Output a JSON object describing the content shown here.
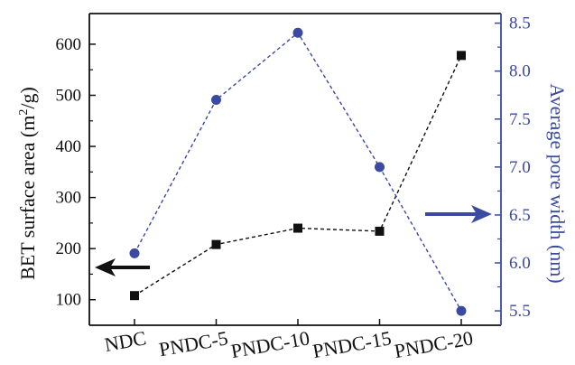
{
  "chart_data": {
    "type": "line",
    "categories": [
      "NDC",
      "PNDC-5",
      "PNDC-10",
      "PNDC-15",
      "PNDC-20"
    ],
    "y_left": {
      "label_main": "BET surface area (m",
      "label_sup": "2",
      "label_end": "/g)",
      "ylim": [
        50,
        660
      ],
      "ticks": [
        100,
        200,
        300,
        400,
        500,
        600
      ],
      "tick_labels": [
        "100",
        "200",
        "300",
        "400",
        "500",
        "600"
      ]
    },
    "y_right": {
      "label": "Average pore width (nm)",
      "ylim": [
        5.35,
        8.6
      ],
      "ticks": [
        5.5,
        6.0,
        6.5,
        7.0,
        7.5,
        8.0,
        8.5
      ],
      "tick_labels": [
        "5.5",
        "6.0",
        "6.5",
        "7.0",
        "7.5",
        "8.0",
        "8.5"
      ]
    },
    "series": [
      {
        "axis": "left",
        "marker": "square",
        "color": "#111111",
        "values": [
          108,
          208,
          240,
          234,
          578
        ]
      },
      {
        "axis": "right",
        "marker": "circle",
        "color": "#3a4aa0",
        "values": [
          6.1,
          7.7,
          8.4,
          7.0,
          5.5
        ]
      }
    ],
    "annotations": [
      {
        "type": "arrow",
        "direction": "left",
        "color": "#111111",
        "meaning": "square series uses left axis"
      },
      {
        "type": "arrow",
        "direction": "right",
        "color": "#3a4aa0",
        "meaning": "circle series uses right axis"
      }
    ],
    "grid": false
  }
}
